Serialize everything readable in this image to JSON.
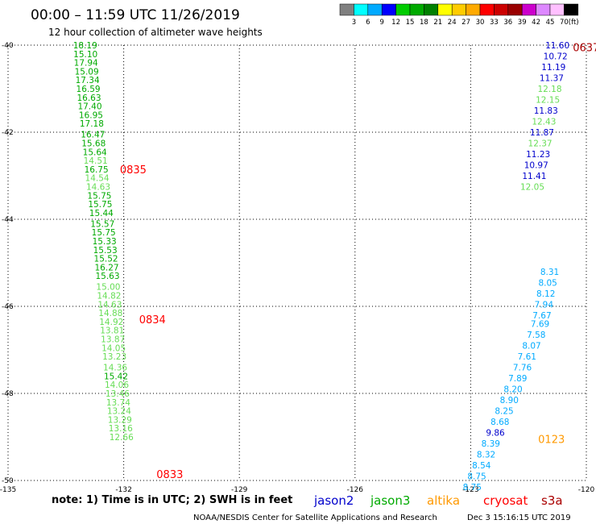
{
  "header": {
    "title": "00:00 – 11:59 UTC 11/26/2019",
    "subtitle": "12 hour collection of altimeter wave heights"
  },
  "colorbar": {
    "unit": "(ft)",
    "labels": [
      "3",
      "6",
      "9",
      "12",
      "15",
      "18",
      "21",
      "24",
      "27",
      "30",
      "33",
      "36",
      "39",
      "42",
      "45",
      "70"
    ],
    "colors": [
      "#808080",
      "#00ffff",
      "#00aaff",
      "#0000ff",
      "#00cc00",
      "#00aa00",
      "#008000",
      "#ffff00",
      "#ffcc00",
      "#ffaa00",
      "#ff0000",
      "#cc0000",
      "#990000",
      "#cc00cc",
      "#dd88ff",
      "#ffc0ff",
      "#000000"
    ]
  },
  "footer": {
    "note": "note: 1) Time is in UTC; 2) SWH is in feet",
    "satellites": [
      {
        "name": "jason2",
        "color": "#0000cc"
      },
      {
        "name": "jason3",
        "color": "#00aa00"
      },
      {
        "name": "altika",
        "color": "#ff9900"
      },
      {
        "name": "cryosat",
        "color": "#ff0000"
      },
      {
        "name": "s3a",
        "color": "#aa0000"
      }
    ],
    "credit": "NOAA/NESDIS Center for Satellite Applications and Research",
    "timestamp": "Dec  3 15:16:15 UTC 2019"
  },
  "chart_data": {
    "type": "scatter",
    "xlim": [
      -135,
      -120
    ],
    "ylim": [
      -50,
      -40
    ],
    "x_ticks": [
      "-135",
      "-132",
      "-129",
      "-126",
      "-123",
      "-120"
    ],
    "y_ticks": [
      "-40",
      "-42",
      "-44",
      "-46",
      "-48",
      "-50"
    ],
    "grid": true,
    "points": [
      {
        "x": -133.0,
        "y": -40.0,
        "v": "18.19",
        "color": "#00aa00"
      },
      {
        "x": -132.99,
        "y": -40.2,
        "v": "15.10",
        "color": "#00aa00"
      },
      {
        "x": -132.98,
        "y": -40.4,
        "v": "17.94",
        "color": "#00aa00"
      },
      {
        "x": -132.96,
        "y": -40.6,
        "v": "15.09",
        "color": "#00aa00"
      },
      {
        "x": -132.94,
        "y": -40.8,
        "v": "17.34",
        "color": "#00aa00"
      },
      {
        "x": -132.92,
        "y": -41.0,
        "v": "16.59",
        "color": "#00aa00"
      },
      {
        "x": -132.9,
        "y": -41.2,
        "v": "16.63",
        "color": "#00aa00"
      },
      {
        "x": -132.88,
        "y": -41.4,
        "v": "17.40",
        "color": "#00aa00"
      },
      {
        "x": -132.85,
        "y": -41.6,
        "v": "16.95",
        "color": "#00aa00"
      },
      {
        "x": -132.83,
        "y": -41.8,
        "v": "17.18",
        "color": "#00aa00"
      },
      {
        "x": -132.8,
        "y": -42.05,
        "v": "16.47",
        "color": "#00aa00"
      },
      {
        "x": -132.78,
        "y": -42.25,
        "v": "15.68",
        "color": "#00aa00"
      },
      {
        "x": -132.75,
        "y": -42.45,
        "v": "15.64",
        "color": "#00aa00"
      },
      {
        "x": -132.73,
        "y": -42.65,
        "v": "14.51",
        "color": "#66dd55"
      },
      {
        "x": -132.71,
        "y": -42.85,
        "v": "16.75",
        "color": "#00aa00"
      },
      {
        "x": -132.69,
        "y": -43.05,
        "v": "14.54",
        "color": "#66dd55"
      },
      {
        "x": -132.66,
        "y": -43.25,
        "v": "14.63",
        "color": "#66dd55"
      },
      {
        "x": -132.63,
        "y": -43.45,
        "v": "15.75",
        "color": "#00aa00"
      },
      {
        "x": -132.61,
        "y": -43.65,
        "v": "15.75",
        "color": "#00aa00"
      },
      {
        "x": -132.58,
        "y": -43.85,
        "v": "15.44",
        "color": "#00aa00"
      },
      {
        "x": -132.55,
        "y": -44.1,
        "v": "15.57",
        "color": "#00aa00"
      },
      {
        "x": -132.52,
        "y": -44.3,
        "v": "15.75",
        "color": "#00aa00"
      },
      {
        "x": -132.5,
        "y": -44.5,
        "v": "15.33",
        "color": "#00aa00"
      },
      {
        "x": -132.48,
        "y": -44.7,
        "v": "15.53",
        "color": "#00aa00"
      },
      {
        "x": -132.46,
        "y": -44.9,
        "v": "15.52",
        "color": "#00aa00"
      },
      {
        "x": -132.44,
        "y": -45.1,
        "v": "16.27",
        "color": "#00aa00"
      },
      {
        "x": -132.42,
        "y": -45.3,
        "v": "15.63",
        "color": "#00aa00"
      },
      {
        "x": -132.4,
        "y": -45.55,
        "v": "15.00",
        "color": "#66dd55"
      },
      {
        "x": -132.38,
        "y": -45.75,
        "v": "14.82",
        "color": "#66dd55"
      },
      {
        "x": -132.36,
        "y": -45.95,
        "v": "14.63",
        "color": "#66dd55"
      },
      {
        "x": -132.34,
        "y": -46.15,
        "v": "14.88",
        "color": "#66dd55"
      },
      {
        "x": -132.32,
        "y": -46.35,
        "v": "14.92",
        "color": "#66dd55"
      },
      {
        "x": -132.3,
        "y": -46.55,
        "v": "13.81",
        "color": "#66dd55"
      },
      {
        "x": -132.28,
        "y": -46.75,
        "v": "13.87",
        "color": "#66dd55"
      },
      {
        "x": -132.26,
        "y": -46.95,
        "v": "14.05",
        "color": "#66dd55"
      },
      {
        "x": -132.24,
        "y": -47.15,
        "v": "13.23",
        "color": "#66dd55"
      },
      {
        "x": -132.22,
        "y": -47.4,
        "v": "14.36",
        "color": "#66dd55"
      },
      {
        "x": -132.2,
        "y": -47.6,
        "v": "15.42",
        "color": "#00aa00"
      },
      {
        "x": -132.18,
        "y": -47.8,
        "v": "14.06",
        "color": "#66dd55"
      },
      {
        "x": -132.16,
        "y": -48.0,
        "v": "13.46",
        "color": "#66dd55"
      },
      {
        "x": -132.14,
        "y": -48.2,
        "v": "13.74",
        "color": "#66dd55"
      },
      {
        "x": -132.12,
        "y": -48.4,
        "v": "13.24",
        "color": "#66dd55"
      },
      {
        "x": -132.1,
        "y": -48.6,
        "v": "13.29",
        "color": "#66dd55"
      },
      {
        "x": -132.08,
        "y": -48.8,
        "v": "13.16",
        "color": "#66dd55"
      },
      {
        "x": -132.06,
        "y": -49.0,
        "v": "12.66",
        "color": "#66dd55"
      },
      {
        "x": -120.75,
        "y": -40.0,
        "v": "11.60",
        "color": "#0000cc"
      },
      {
        "x": -120.8,
        "y": -40.25,
        "v": "10.72",
        "color": "#0000cc"
      },
      {
        "x": -120.85,
        "y": -40.5,
        "v": "11.19",
        "color": "#0000cc"
      },
      {
        "x": -120.9,
        "y": -40.75,
        "v": "11.37",
        "color": "#0000cc"
      },
      {
        "x": -120.95,
        "y": -41.0,
        "v": "12.18",
        "color": "#66dd55"
      },
      {
        "x": -121.0,
        "y": -41.25,
        "v": "12.15",
        "color": "#66dd55"
      },
      {
        "x": -121.05,
        "y": -41.5,
        "v": "11.83",
        "color": "#0000cc"
      },
      {
        "x": -121.1,
        "y": -41.75,
        "v": "12.43",
        "color": "#66dd55"
      },
      {
        "x": -121.15,
        "y": -42.0,
        "v": "11.87",
        "color": "#0000cc"
      },
      {
        "x": -121.2,
        "y": -42.25,
        "v": "12.37",
        "color": "#66dd55"
      },
      {
        "x": -121.25,
        "y": -42.5,
        "v": "11.23",
        "color": "#0000cc"
      },
      {
        "x": -121.3,
        "y": -42.75,
        "v": "10.97",
        "color": "#0000cc"
      },
      {
        "x": -121.35,
        "y": -43.0,
        "v": "11.41",
        "color": "#0000cc"
      },
      {
        "x": -121.4,
        "y": -43.25,
        "v": "12.05",
        "color": "#66dd55"
      },
      {
        "x": -120.95,
        "y": -45.2,
        "v": "8.31",
        "color": "#00aaff"
      },
      {
        "x": -121.0,
        "y": -45.45,
        "v": "8.05",
        "color": "#00aaff"
      },
      {
        "x": -121.05,
        "y": -45.7,
        "v": "8.12",
        "color": "#00aaff"
      },
      {
        "x": -121.1,
        "y": -45.95,
        "v": "7.94",
        "color": "#00aaff"
      },
      {
        "x": -121.15,
        "y": -46.2,
        "v": "7.67",
        "color": "#00aaff"
      },
      {
        "x": -121.2,
        "y": -46.4,
        "v": "7.69",
        "color": "#00aaff"
      },
      {
        "x": -121.3,
        "y": -46.65,
        "v": "7.58",
        "color": "#00aaff"
      },
      {
        "x": -121.42,
        "y": -46.9,
        "v": "8.07",
        "color": "#00aaff"
      },
      {
        "x": -121.54,
        "y": -47.15,
        "v": "7.61",
        "color": "#00aaff"
      },
      {
        "x": -121.66,
        "y": -47.4,
        "v": "7.76",
        "color": "#00aaff"
      },
      {
        "x": -121.78,
        "y": -47.65,
        "v": "7.89",
        "color": "#00aaff"
      },
      {
        "x": -121.9,
        "y": -47.9,
        "v": "8.20",
        "color": "#00aaff"
      },
      {
        "x": -122.0,
        "y": -48.15,
        "v": "8.90",
        "color": "#00aaff"
      },
      {
        "x": -122.13,
        "y": -48.4,
        "v": "8.25",
        "color": "#00aaff"
      },
      {
        "x": -122.24,
        "y": -48.65,
        "v": "8.68",
        "color": "#00aaff"
      },
      {
        "x": -122.36,
        "y": -48.9,
        "v": "9.86",
        "color": "#0000cc"
      },
      {
        "x": -122.48,
        "y": -49.15,
        "v": "8.39",
        "color": "#00aaff"
      },
      {
        "x": -122.6,
        "y": -49.4,
        "v": "8.32",
        "color": "#00aaff"
      },
      {
        "x": -122.72,
        "y": -49.65,
        "v": "8.54",
        "color": "#00aaff"
      },
      {
        "x": -122.84,
        "y": -49.9,
        "v": "8.75",
        "color": "#00aaff"
      },
      {
        "x": -122.96,
        "y": -50.15,
        "v": "8.75",
        "color": "#00aaff"
      }
    ],
    "time_labels": [
      {
        "x": -132.1,
        "y": -42.85,
        "text": "0835",
        "color": "#ff0000"
      },
      {
        "x": -131.6,
        "y": -46.3,
        "text": "0834",
        "color": "#ff0000"
      },
      {
        "x": -131.15,
        "y": -49.85,
        "text": "0833",
        "color": "#ff0000"
      },
      {
        "x": -120.35,
        "y": -40.05,
        "text": "0637",
        "color": "#aa0000"
      },
      {
        "x": -121.25,
        "y": -49.05,
        "text": "0123",
        "color": "#ff9900"
      }
    ]
  }
}
